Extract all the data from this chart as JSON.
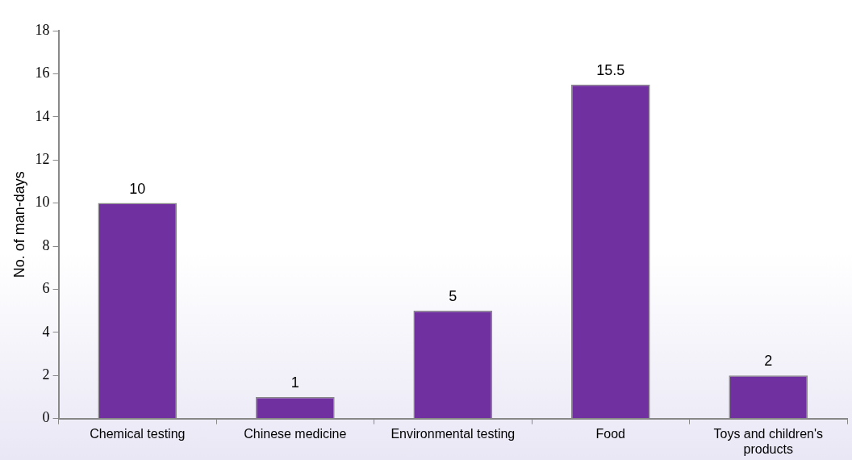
{
  "chart_data": {
    "type": "bar",
    "ylabel": "No. of man-days",
    "categories": [
      "Chemical testing",
      "Chinese medicine",
      "Environmental testing",
      "Food",
      "Toys and children's products"
    ],
    "values": [
      10,
      1,
      5,
      15.5,
      2
    ],
    "color": "#7030a0",
    "ylim": [
      0,
      18
    ],
    "yticks": [
      0,
      2,
      4,
      6,
      8,
      10,
      12,
      14,
      16,
      18
    ],
    "grid": false,
    "legend": false,
    "data_labels": true
  }
}
